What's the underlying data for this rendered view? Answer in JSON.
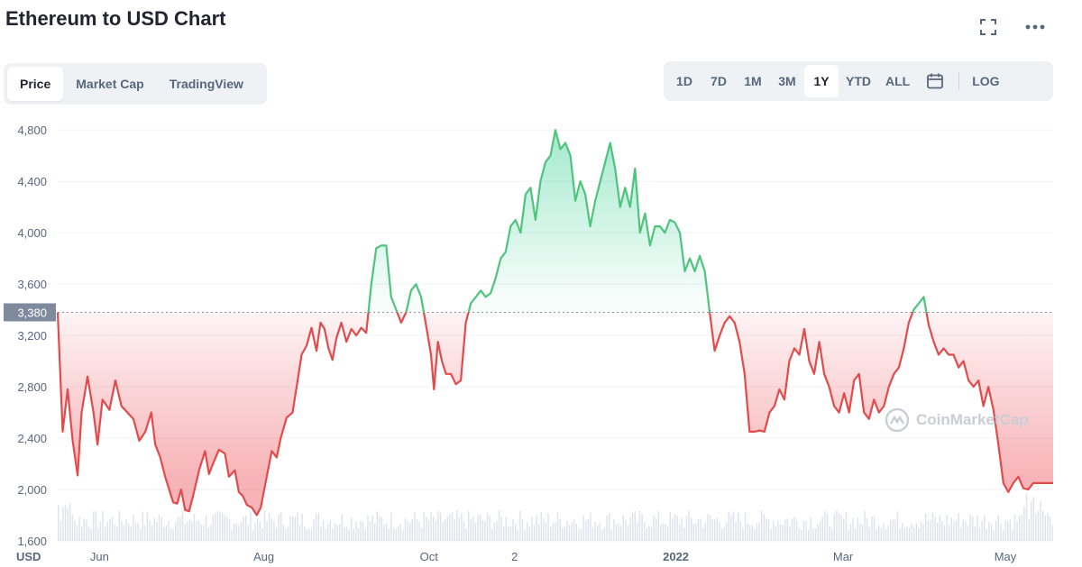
{
  "header": {
    "title": "Ethereum to USD Chart"
  },
  "toolbar": {
    "tabs": [
      {
        "label": "Price",
        "active": true
      },
      {
        "label": "Market Cap",
        "active": false
      },
      {
        "label": "TradingView",
        "active": false
      }
    ],
    "ranges": [
      {
        "label": "1D",
        "active": false
      },
      {
        "label": "7D",
        "active": false
      },
      {
        "label": "1M",
        "active": false
      },
      {
        "label": "3M",
        "active": false
      },
      {
        "label": "1Y",
        "active": true
      },
      {
        "label": "YTD",
        "active": false
      },
      {
        "label": "ALL",
        "active": false
      }
    ],
    "log_label": "LOG",
    "icons": {
      "fullscreen": "fullscreen-icon",
      "more": "more-icon",
      "calendar": "calendar-icon"
    }
  },
  "watermark": {
    "text": "CoinMarketCap"
  },
  "chart_data": {
    "type": "area",
    "y_unit_label": "USD",
    "ylim": [
      1600,
      4900
    ],
    "yticks": [
      1600,
      2000,
      2400,
      2800,
      3200,
      3600,
      4000,
      4400,
      4800
    ],
    "ytick_labels": [
      "1,600",
      "2,000",
      "2,400",
      "2,800",
      "3,200",
      "3,600",
      "4,000",
      "4,400",
      "4,800"
    ],
    "xticks": [
      {
        "t": 0.042,
        "label": "Jun"
      },
      {
        "t": 0.207,
        "label": "Aug"
      },
      {
        "t": 0.373,
        "label": "Oct"
      },
      {
        "t": 0.459,
        "label": "2"
      },
      {
        "t": 0.621,
        "label": "2022"
      },
      {
        "t": 0.789,
        "label": "Mar"
      },
      {
        "t": 0.952,
        "label": "May"
      }
    ],
    "reference": {
      "value": 3380,
      "label": "3,380"
    },
    "colors": {
      "above": "#16c784",
      "below": "#ea3943",
      "line_up": "#4fc47d",
      "line_down": "#e24b4b"
    },
    "price": [
      [
        0.0,
        3380
      ],
      [
        0.005,
        2450
      ],
      [
        0.01,
        2780
      ],
      [
        0.015,
        2380
      ],
      [
        0.02,
        2110
      ],
      [
        0.024,
        2600
      ],
      [
        0.03,
        2880
      ],
      [
        0.036,
        2600
      ],
      [
        0.04,
        2350
      ],
      [
        0.045,
        2700
      ],
      [
        0.052,
        2620
      ],
      [
        0.058,
        2850
      ],
      [
        0.064,
        2650
      ],
      [
        0.07,
        2600
      ],
      [
        0.076,
        2550
      ],
      [
        0.082,
        2380
      ],
      [
        0.088,
        2450
      ],
      [
        0.094,
        2600
      ],
      [
        0.098,
        2350
      ],
      [
        0.103,
        2250
      ],
      [
        0.108,
        2100
      ],
      [
        0.112,
        2000
      ],
      [
        0.116,
        1900
      ],
      [
        0.12,
        1890
      ],
      [
        0.124,
        2000
      ],
      [
        0.128,
        1840
      ],
      [
        0.132,
        1830
      ],
      [
        0.136,
        1950
      ],
      [
        0.142,
        2150
      ],
      [
        0.148,
        2300
      ],
      [
        0.152,
        2120
      ],
      [
        0.156,
        2200
      ],
      [
        0.162,
        2310
      ],
      [
        0.168,
        2280
      ],
      [
        0.172,
        2100
      ],
      [
        0.178,
        2150
      ],
      [
        0.182,
        1980
      ],
      [
        0.186,
        1950
      ],
      [
        0.19,
        1880
      ],
      [
        0.195,
        1860
      ],
      [
        0.2,
        1800
      ],
      [
        0.204,
        1860
      ],
      [
        0.21,
        2100
      ],
      [
        0.215,
        2300
      ],
      [
        0.22,
        2250
      ],
      [
        0.224,
        2400
      ],
      [
        0.23,
        2560
      ],
      [
        0.236,
        2600
      ],
      [
        0.24,
        2800
      ],
      [
        0.245,
        3050
      ],
      [
        0.25,
        3120
      ],
      [
        0.255,
        3260
      ],
      [
        0.26,
        3080
      ],
      [
        0.264,
        3300
      ],
      [
        0.268,
        3250
      ],
      [
        0.272,
        3100
      ],
      [
        0.276,
        3010
      ],
      [
        0.28,
        3180
      ],
      [
        0.285,
        3300
      ],
      [
        0.29,
        3150
      ],
      [
        0.295,
        3250
      ],
      [
        0.3,
        3200
      ],
      [
        0.305,
        3260
      ],
      [
        0.31,
        3220
      ],
      [
        0.315,
        3600
      ],
      [
        0.32,
        3880
      ],
      [
        0.325,
        3900
      ],
      [
        0.33,
        3900
      ],
      [
        0.335,
        3500
      ],
      [
        0.34,
        3400
      ],
      [
        0.345,
        3300
      ],
      [
        0.35,
        3380
      ],
      [
        0.355,
        3550
      ],
      [
        0.36,
        3600
      ],
      [
        0.365,
        3500
      ],
      [
        0.37,
        3280
      ],
      [
        0.375,
        3050
      ],
      [
        0.378,
        2780
      ],
      [
        0.382,
        3150
      ],
      [
        0.386,
        3000
      ],
      [
        0.39,
        2900
      ],
      [
        0.395,
        2900
      ],
      [
        0.4,
        2820
      ],
      [
        0.405,
        2850
      ],
      [
        0.41,
        3300
      ],
      [
        0.415,
        3450
      ],
      [
        0.42,
        3500
      ],
      [
        0.425,
        3550
      ],
      [
        0.43,
        3500
      ],
      [
        0.435,
        3530
      ],
      [
        0.44,
        3650
      ],
      [
        0.445,
        3800
      ],
      [
        0.45,
        3850
      ],
      [
        0.455,
        4050
      ],
      [
        0.46,
        4100
      ],
      [
        0.465,
        4000
      ],
      [
        0.47,
        4300
      ],
      [
        0.475,
        4350
      ],
      [
        0.48,
        4100
      ],
      [
        0.485,
        4400
      ],
      [
        0.49,
        4550
      ],
      [
        0.495,
        4600
      ],
      [
        0.5,
        4800
      ],
      [
        0.505,
        4650
      ],
      [
        0.51,
        4700
      ],
      [
        0.515,
        4600
      ],
      [
        0.52,
        4250
      ],
      [
        0.525,
        4400
      ],
      [
        0.53,
        4300
      ],
      [
        0.535,
        4050
      ],
      [
        0.54,
        4250
      ],
      [
        0.545,
        4400
      ],
      [
        0.55,
        4550
      ],
      [
        0.555,
        4700
      ],
      [
        0.56,
        4500
      ],
      [
        0.565,
        4200
      ],
      [
        0.57,
        4350
      ],
      [
        0.575,
        4200
      ],
      [
        0.58,
        4500
      ],
      [
        0.585,
        4000
      ],
      [
        0.59,
        4150
      ],
      [
        0.595,
        3900
      ],
      [
        0.6,
        4050
      ],
      [
        0.605,
        4050
      ],
      [
        0.61,
        4000
      ],
      [
        0.615,
        4100
      ],
      [
        0.62,
        4080
      ],
      [
        0.625,
        4000
      ],
      [
        0.63,
        3700
      ],
      [
        0.635,
        3800
      ],
      [
        0.64,
        3700
      ],
      [
        0.645,
        3820
      ],
      [
        0.65,
        3700
      ],
      [
        0.655,
        3380
      ],
      [
        0.66,
        3080
      ],
      [
        0.665,
        3200
      ],
      [
        0.67,
        3300
      ],
      [
        0.675,
        3350
      ],
      [
        0.68,
        3300
      ],
      [
        0.685,
        3150
      ],
      [
        0.69,
        2900
      ],
      [
        0.695,
        2450
      ],
      [
        0.7,
        2450
      ],
      [
        0.705,
        2460
      ],
      [
        0.71,
        2450
      ],
      [
        0.715,
        2600
      ],
      [
        0.72,
        2650
      ],
      [
        0.725,
        2780
      ],
      [
        0.73,
        2700
      ],
      [
        0.735,
        3000
      ],
      [
        0.74,
        3100
      ],
      [
        0.745,
        3050
      ],
      [
        0.75,
        3250
      ],
      [
        0.755,
        3000
      ],
      [
        0.76,
        2900
      ],
      [
        0.765,
        3150
      ],
      [
        0.77,
        2900
      ],
      [
        0.775,
        2800
      ],
      [
        0.78,
        2650
      ],
      [
        0.785,
        2600
      ],
      [
        0.79,
        2750
      ],
      [
        0.795,
        2600
      ],
      [
        0.8,
        2850
      ],
      [
        0.805,
        2900
      ],
      [
        0.81,
        2600
      ],
      [
        0.815,
        2550
      ],
      [
        0.82,
        2700
      ],
      [
        0.825,
        2600
      ],
      [
        0.83,
        2650
      ],
      [
        0.835,
        2800
      ],
      [
        0.84,
        2900
      ],
      [
        0.845,
        2950
      ],
      [
        0.85,
        3100
      ],
      [
        0.855,
        3300
      ],
      [
        0.86,
        3400
      ],
      [
        0.865,
        3450
      ],
      [
        0.87,
        3500
      ],
      [
        0.875,
        3280
      ],
      [
        0.88,
        3150
      ],
      [
        0.885,
        3050
      ],
      [
        0.89,
        3100
      ],
      [
        0.895,
        3050
      ],
      [
        0.9,
        3050
      ],
      [
        0.905,
        2950
      ],
      [
        0.91,
        3000
      ],
      [
        0.915,
        2850
      ],
      [
        0.92,
        2800
      ],
      [
        0.925,
        2850
      ],
      [
        0.93,
        2650
      ],
      [
        0.935,
        2800
      ],
      [
        0.94,
        2620
      ],
      [
        0.945,
        2350
      ],
      [
        0.95,
        2050
      ],
      [
        0.955,
        1980
      ],
      [
        0.96,
        2050
      ],
      [
        0.965,
        2100
      ],
      [
        0.97,
        2010
      ],
      [
        0.975,
        2000
      ],
      [
        0.98,
        2050
      ],
      [
        1.0,
        2050
      ]
    ],
    "volume": []
  }
}
